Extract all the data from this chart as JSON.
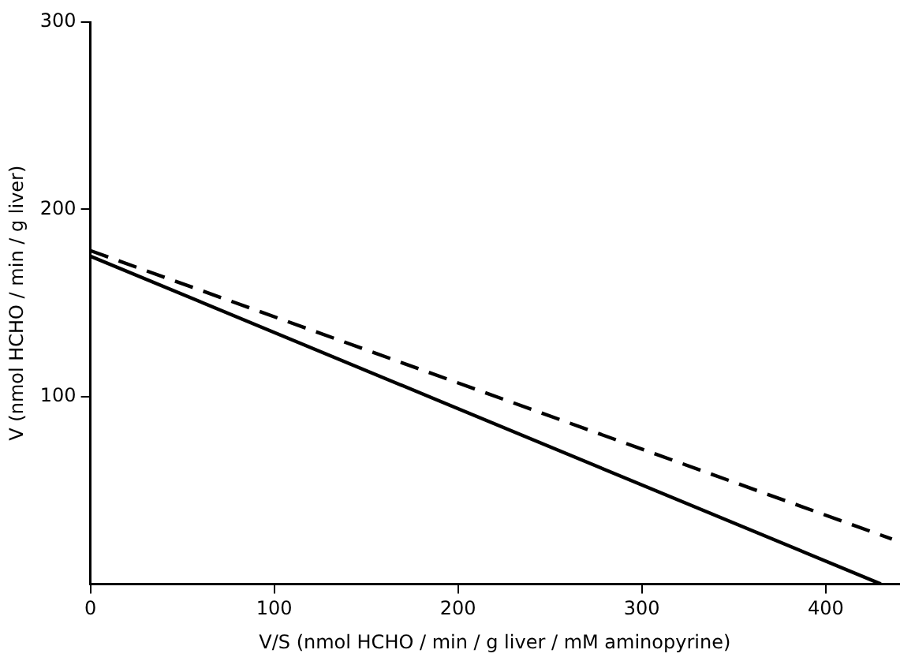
{
  "chart_data": {
    "type": "line",
    "xlabel": "V/S (nmol HCHO / min / g liver / mM aminopyrine)",
    "ylabel": "V (nmol HCHO / min / g liver)",
    "series": [
      {
        "x": [
          0,
          430
        ],
        "values": [
          175,
          0
        ],
        "color": "#000000",
        "line_style": "solid"
      },
      {
        "x": [
          0,
          436
        ],
        "values": [
          178,
          24
        ],
        "color": "#000000",
        "line_style": "dashed"
      }
    ],
    "xlim": [
      0,
      440
    ],
    "xticks": [
      0,
      100,
      200,
      300,
      400
    ],
    "ylim": [
      0,
      300
    ],
    "yticks": [
      100,
      200,
      300
    ],
    "grid": false,
    "legend": false,
    "marker": "none"
  }
}
